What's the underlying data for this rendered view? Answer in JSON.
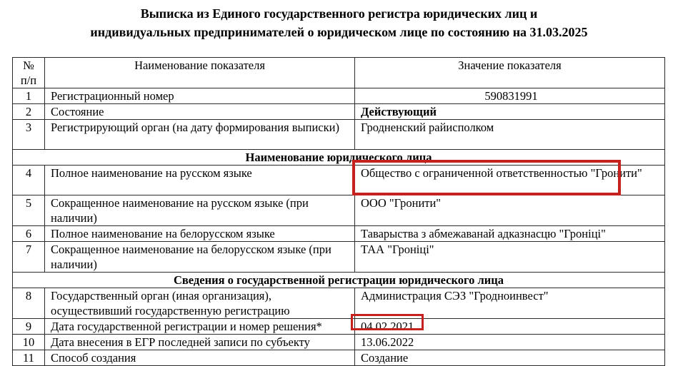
{
  "document": {
    "title_line1": "Выписка из Единого государственного регистра юридических лиц и",
    "title_line2": "индивидуальных предпринимателей о юридическом лице по состоянию на 31.03.2025"
  },
  "table": {
    "columns": {
      "num": "№\nп/п",
      "name": "Наименование показателя",
      "value": "Значение показателя"
    },
    "sections": [
      "Наименование юридического лица",
      "Сведения о государственной регистрации юридического лица"
    ],
    "rows": [
      {
        "num": "1",
        "name": "Регистрационный номер",
        "value": "590831991"
      },
      {
        "num": "2",
        "name": "Состояние",
        "value": "Действующий"
      },
      {
        "num": "3",
        "name": "Регистрирующий орган (на дату формирования выписки)",
        "value": "Гродненский райисполком"
      },
      {
        "num": "4",
        "name": "Полное наименование на русском языке",
        "value": "Общество с ограниченной ответственностью \"Гронити\""
      },
      {
        "num": "5",
        "name": "Сокращенное наименование на русском языке (при наличии)",
        "value": "ООО \"Гронити\""
      },
      {
        "num": "6",
        "name": "Полное наименование на белорусском языке",
        "value": "Таварыства з абмежаванай адказнасцю \"Гроніці\""
      },
      {
        "num": "7",
        "name": "Сокращенное наименование на белорусском языке (при наличии)",
        "value": "ТАА \"Гроніці\""
      },
      {
        "num": "8",
        "name": "Государственный орган (иная организация), осуществивший государственную регистрацию",
        "value": "Администрация СЭЗ \"Гродноинвест\""
      },
      {
        "num": "9",
        "name": "Дата государственной регистрации и номер решения*",
        "value": "04.02.2021"
      },
      {
        "num": "10",
        "name": "Дата внесения в ЕГР последней записи по субъекту",
        "value": "13.06.2022"
      },
      {
        "num": "11",
        "name": "Способ создания",
        "value": "Создание"
      }
    ]
  },
  "annotations": {
    "highlighted_full_name_value": "Общество с ограниченной ответственностью \"Гронити\"",
    "highlighted_registration_date_value": "04.02.2021"
  },
  "colors": {
    "highlight_red": "#c5221f",
    "table_border": "#2b2b2b",
    "text": "#000000",
    "background": "#ffffff"
  }
}
